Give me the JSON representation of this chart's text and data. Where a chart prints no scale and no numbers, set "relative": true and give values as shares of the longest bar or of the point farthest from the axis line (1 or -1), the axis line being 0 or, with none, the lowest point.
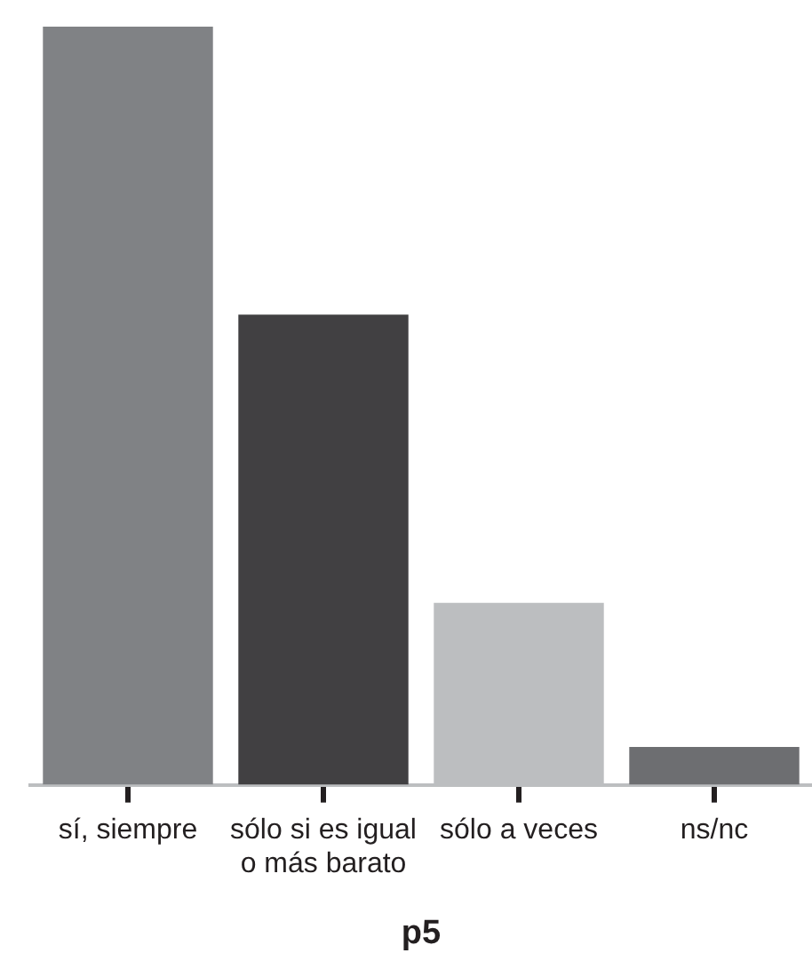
{
  "chart_data": {
    "type": "bar",
    "categories": [
      "sí, siempre",
      "sólo si es igual o más barato",
      "sólo a veces",
      "ns/nc"
    ],
    "values": [
      1,
      0.62,
      0.24,
      0.05
    ],
    "colors": [
      "#808285",
      "#414042",
      "#bcbec0",
      "#6d6e71"
    ],
    "xlabel": "p5",
    "relative": true
  }
}
